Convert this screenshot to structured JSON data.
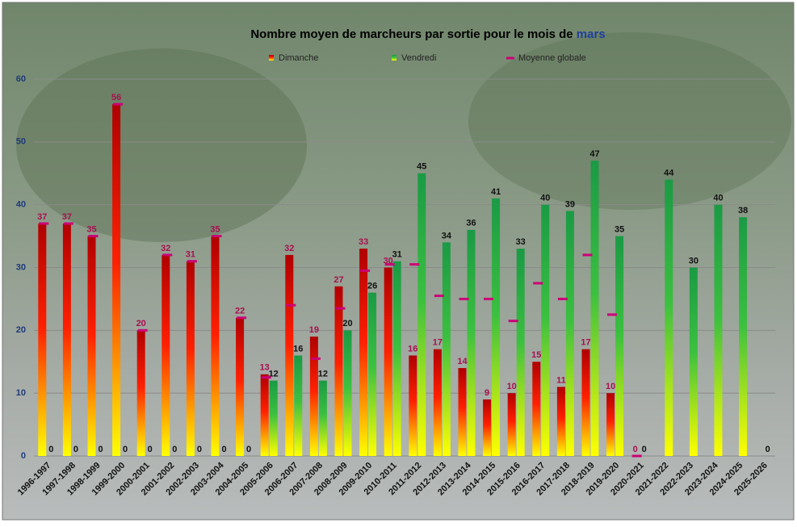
{
  "chart_data": {
    "type": "bar",
    "title": "Nombre moyen de marcheurs par sortie pour le mois de",
    "title_month": "mars",
    "categories": [
      "1996-1997",
      "1997-1998",
      "1998-1999",
      "1999-2000",
      "2000-2001",
      "2001-2002",
      "2002-2003",
      "2003-2004",
      "2004-2005",
      "2005-2006",
      "2006-2007",
      "2007-2008",
      "2008-2009",
      "2009-2010",
      "2010-2011",
      "2011-2012",
      "2012-2013",
      "2013-2014",
      "2014-2015",
      "2015-2016",
      "2016-2017",
      "2017-2018",
      "2018-2019",
      "2019-2020",
      "2020-2021",
      "2021-2022",
      "2022-2023",
      "2023-2024",
      "2024-2025",
      "2025-2026"
    ],
    "series": [
      {
        "name": "Dimanche",
        "color": "#b00000",
        "values": [
          37,
          37,
          35,
          56,
          20,
          32,
          31,
          35,
          22,
          13,
          32,
          19,
          27,
          33,
          30,
          16,
          17,
          14,
          9,
          10,
          15,
          11,
          17,
          10,
          0,
          null,
          null,
          null,
          null,
          null
        ]
      },
      {
        "name": "Vendredi",
        "color": "#1a9a45",
        "values": [
          0,
          0,
          0,
          0,
          0,
          0,
          0,
          0,
          0,
          12,
          16,
          12,
          20,
          26,
          31,
          45,
          34,
          36,
          41,
          33,
          40,
          39,
          47,
          35,
          0,
          44,
          30,
          40,
          38,
          0
        ]
      },
      {
        "name": "Moyenne globale",
        "color": "#cc0077",
        "values": [
          37,
          37,
          35,
          56,
          20,
          32,
          31,
          35,
          22,
          12.5,
          24,
          15.5,
          23.5,
          29.5,
          30.5,
          30.5,
          25.5,
          25,
          25,
          21.5,
          27.5,
          25,
          32,
          22.5,
          0,
          null,
          null,
          null,
          null,
          null
        ]
      }
    ],
    "ylim": [
      0,
      60
    ],
    "yticks": [
      0,
      10,
      20,
      30,
      40,
      50,
      60
    ],
    "grid": true
  }
}
